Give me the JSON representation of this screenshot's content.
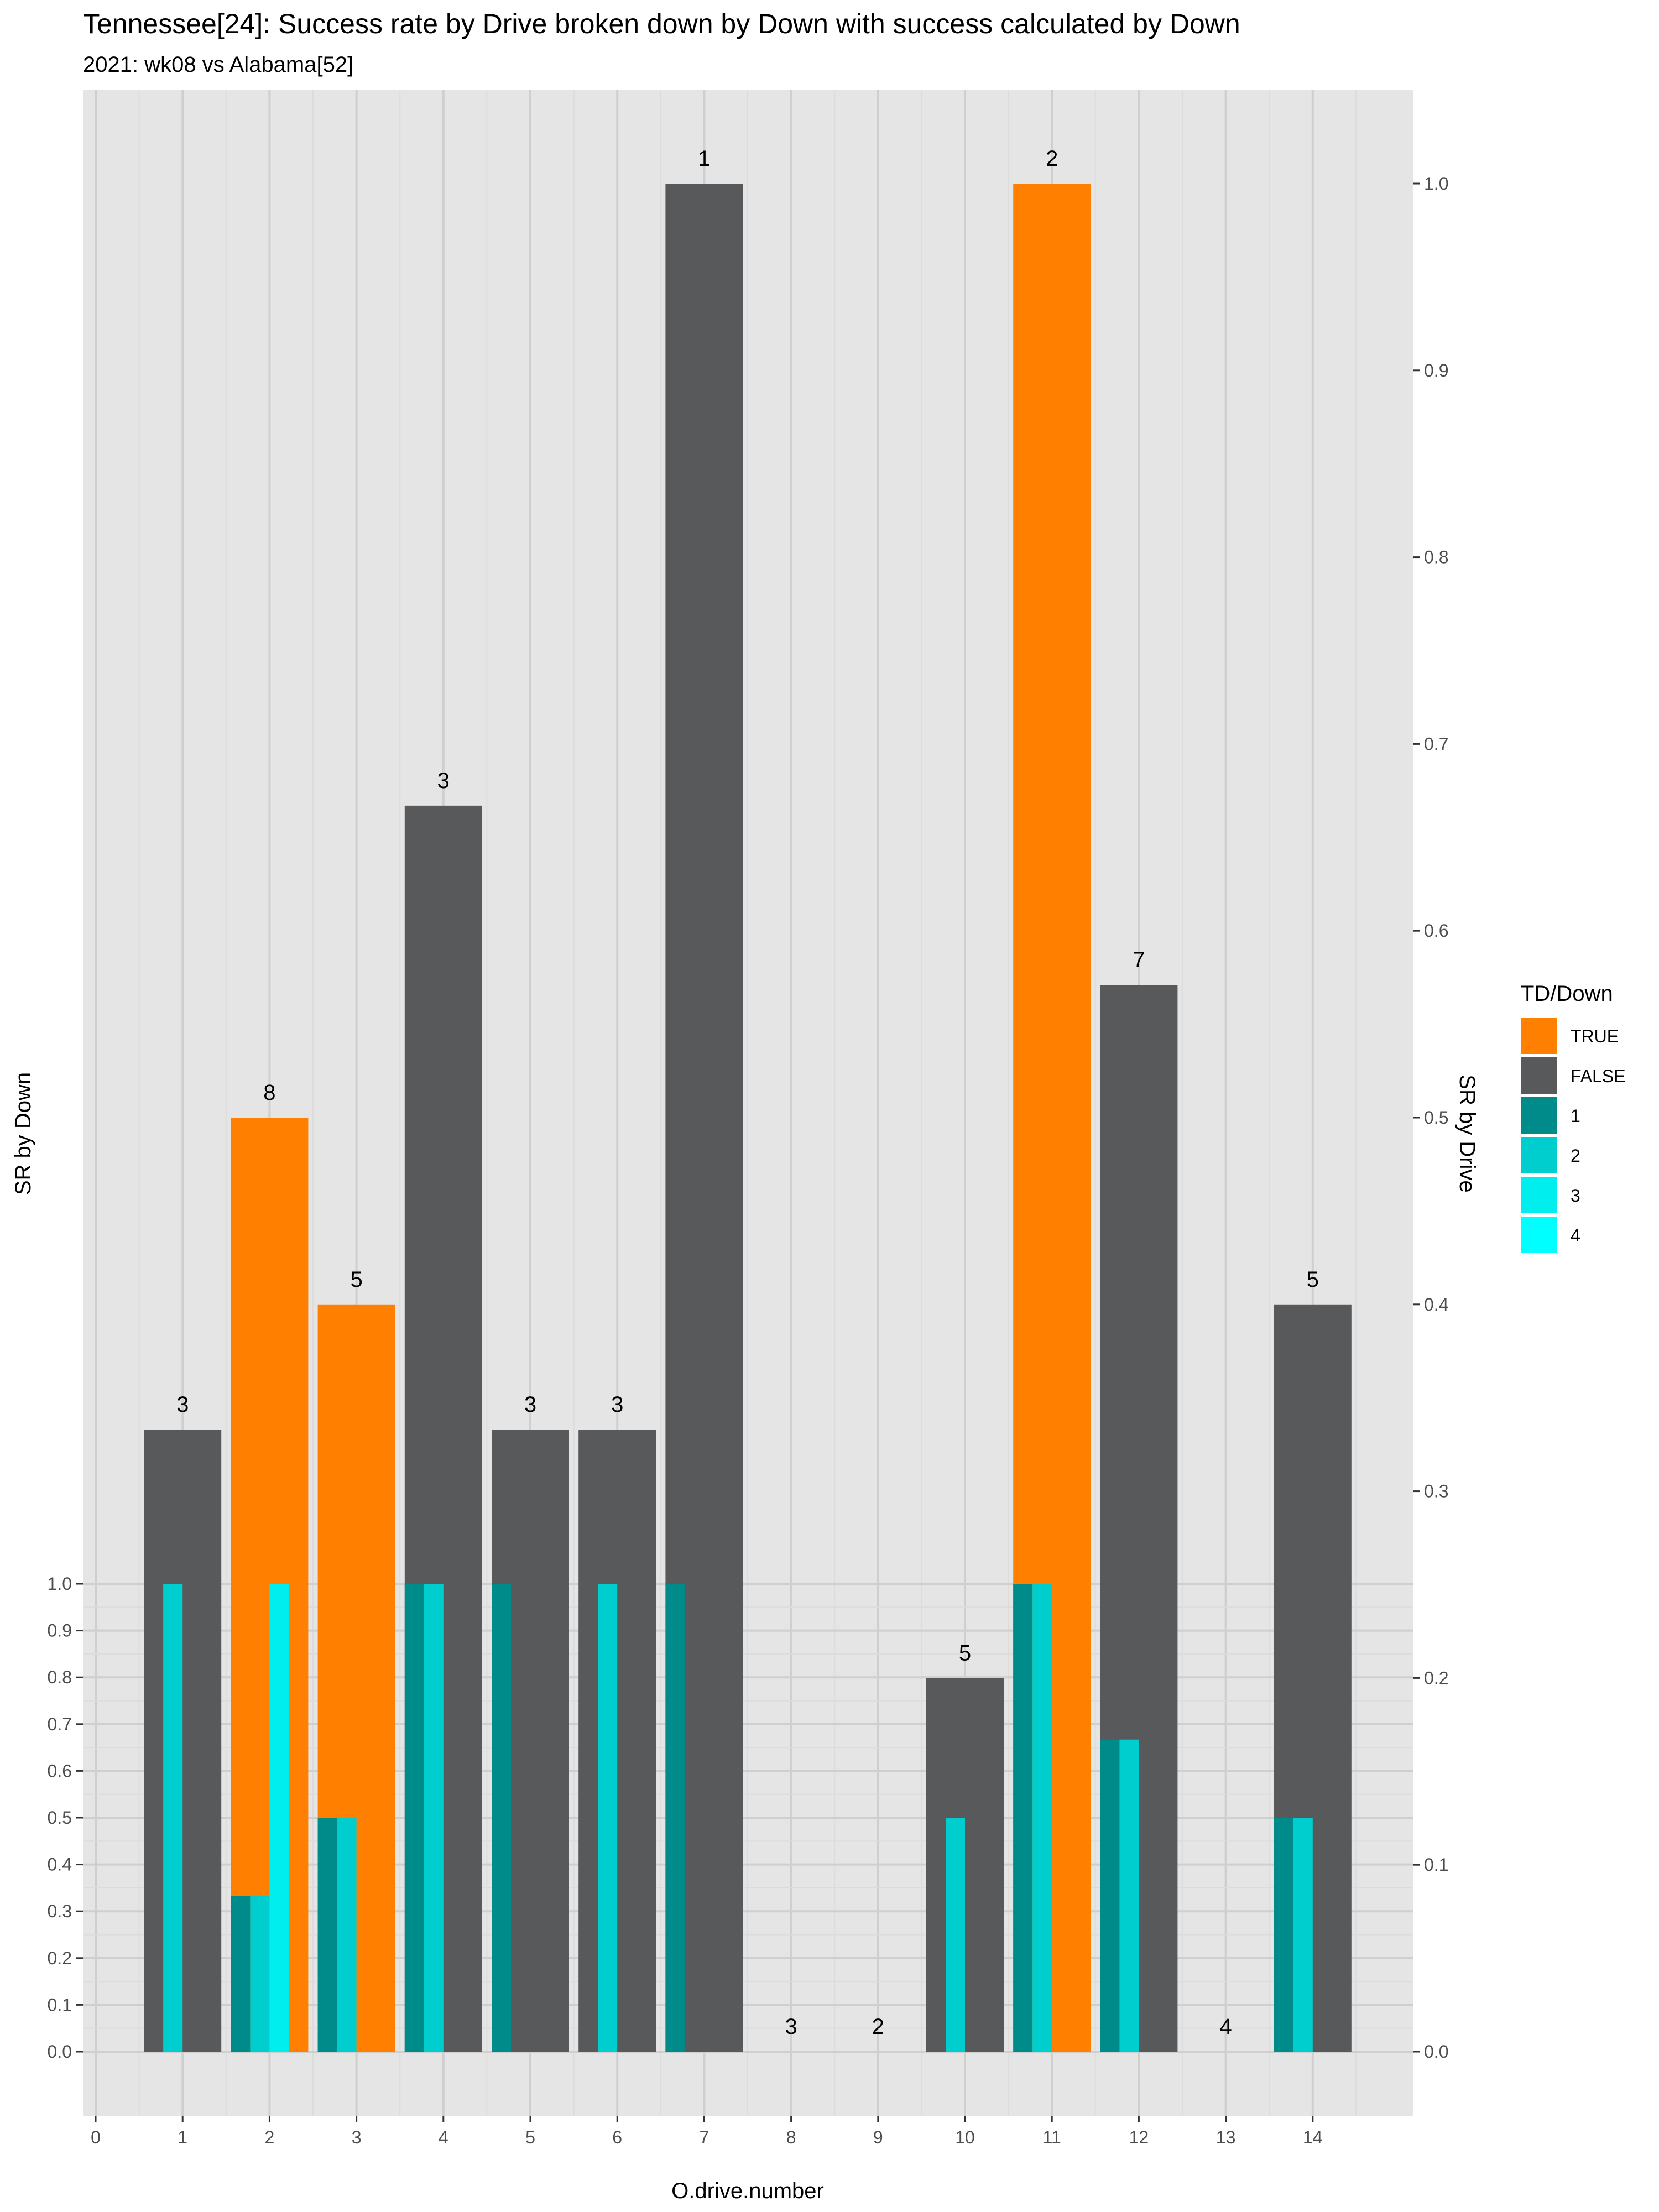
{
  "chart_data": {
    "type": "bar",
    "title": "Tennessee[24]: Success rate by Drive broken down by Down with success calculated by Down",
    "subtitle": "2021: wk08 vs Alabama[52]",
    "xlabel": "O.drive.number",
    "ylabel_left": "SR by Down",
    "ylabel_right": "SR by Drive",
    "x_ticks": [
      "0",
      "1",
      "2",
      "3",
      "4",
      "5",
      "6",
      "7",
      "8",
      "9",
      "10",
      "11",
      "12",
      "13",
      "14"
    ],
    "y_left_ticks": [
      "0.0",
      "0.1",
      "0.2",
      "0.3",
      "0.4",
      "0.5",
      "0.6",
      "0.7",
      "0.8",
      "0.9",
      "1.0"
    ],
    "y_right_ticks": [
      "0.0",
      "0.1",
      "0.2",
      "0.3",
      "0.4",
      "0.5",
      "0.6",
      "0.7",
      "0.8",
      "0.9",
      "1.0"
    ],
    "y_right_lim": [
      0,
      1
    ],
    "y_left_lim": [
      0,
      1
    ],
    "grid": true,
    "legend": {
      "title": "TD/Down",
      "placement": "right",
      "entries": [
        {
          "label": "TRUE",
          "color": "#ff8000"
        },
        {
          "label": "FALSE",
          "color": "#58595b"
        },
        {
          "label": "1",
          "color": "#008b8b"
        },
        {
          "label": "2",
          "color": "#00cdcd"
        },
        {
          "label": "3",
          "color": "#00eeee"
        },
        {
          "label": "4",
          "color": "#00ffff"
        }
      ]
    },
    "drives": [
      {
        "drive": 1,
        "sr": 0.333,
        "td": false,
        "plays": "3",
        "downs": [
          {
            "down": 2,
            "sr": 1.0
          }
        ]
      },
      {
        "drive": 2,
        "sr": 0.5,
        "td": true,
        "plays": "8",
        "downs": [
          {
            "down": 1,
            "sr": 0.333
          },
          {
            "down": 2,
            "sr": 0.333
          },
          {
            "down": 3,
            "sr": 1.0
          }
        ]
      },
      {
        "drive": 3,
        "sr": 0.4,
        "td": true,
        "plays": "5",
        "downs": [
          {
            "down": 1,
            "sr": 0.5
          },
          {
            "down": 2,
            "sr": 0.5
          }
        ]
      },
      {
        "drive": 4,
        "sr": 0.667,
        "td": false,
        "plays": "3",
        "downs": [
          {
            "down": 1,
            "sr": 1.0
          },
          {
            "down": 2,
            "sr": 1.0
          }
        ]
      },
      {
        "drive": 5,
        "sr": 0.333,
        "td": false,
        "plays": "3",
        "downs": [
          {
            "down": 1,
            "sr": 1.0
          }
        ]
      },
      {
        "drive": 6,
        "sr": 0.333,
        "td": false,
        "plays": "3",
        "downs": [
          {
            "down": 2,
            "sr": 1.0
          }
        ]
      },
      {
        "drive": 7,
        "sr": 1.0,
        "td": false,
        "plays": "1",
        "downs": [
          {
            "down": 1,
            "sr": 1.0
          }
        ]
      },
      {
        "drive": 8,
        "sr": 0.0,
        "td": false,
        "plays": "3",
        "downs": []
      },
      {
        "drive": 9,
        "sr": 0.0,
        "td": false,
        "plays": "2",
        "downs": []
      },
      {
        "drive": 10,
        "sr": 0.2,
        "td": false,
        "plays": "5",
        "downs": [
          {
            "down": 2,
            "sr": 0.5
          }
        ]
      },
      {
        "drive": 11,
        "sr": 1.0,
        "td": true,
        "plays": "2",
        "downs": [
          {
            "down": 1,
            "sr": 1.0
          },
          {
            "down": 2,
            "sr": 1.0
          }
        ]
      },
      {
        "drive": 12,
        "sr": 0.571,
        "td": false,
        "plays": "7",
        "downs": [
          {
            "down": 1,
            "sr": 0.667
          },
          {
            "down": 2,
            "sr": 0.667
          }
        ]
      },
      {
        "drive": 13,
        "sr": 0.0,
        "td": false,
        "plays": "4",
        "downs": []
      },
      {
        "drive": 14,
        "sr": 0.4,
        "td": false,
        "plays": "5",
        "downs": [
          {
            "down": 1,
            "sr": 0.5
          },
          {
            "down": 2,
            "sr": 0.5
          }
        ]
      }
    ]
  }
}
